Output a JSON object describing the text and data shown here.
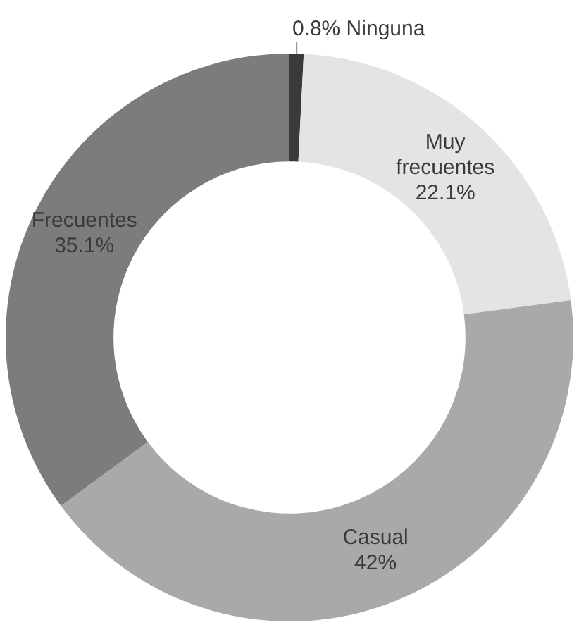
{
  "chart_data": {
    "type": "donut",
    "categories": [
      "Ninguna",
      "Muy frecuentes",
      "Casual",
      "Frecuentes"
    ],
    "values": [
      0.8,
      22.1,
      42,
      35.1
    ],
    "value_labels": [
      "0.8%",
      "22.1%",
      "42%",
      "35.1%"
    ],
    "colors": [
      "#3a3a3a",
      "#e4e4e4",
      "#a9a9aa",
      "#7c7c7d"
    ],
    "legend": false
  }
}
